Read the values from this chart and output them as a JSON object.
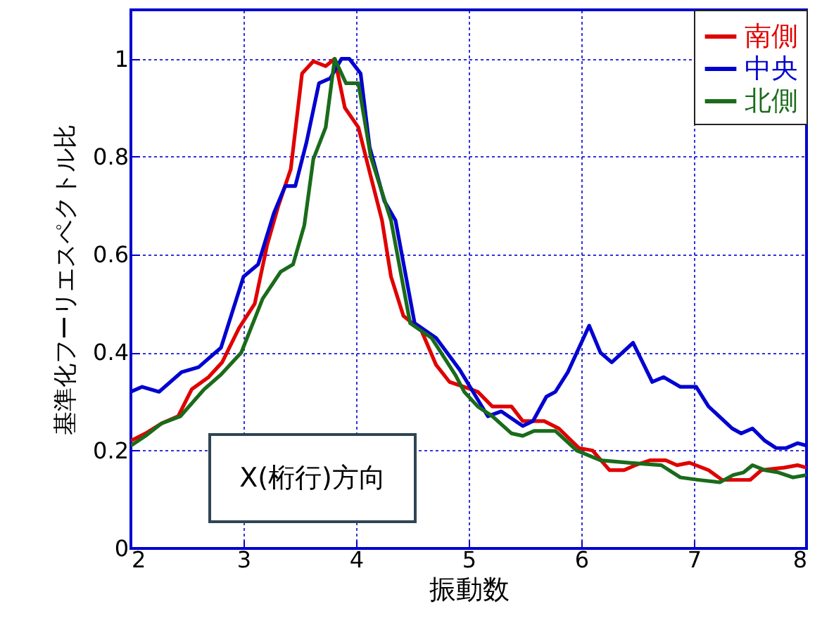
{
  "chart_data": {
    "type": "line",
    "xlabel": "振動数",
    "ylabel": "基準化フーリエスペクトル比",
    "xlim": [
      2,
      8
    ],
    "xticks": [
      2,
      3,
      4,
      5,
      6,
      7,
      8
    ],
    "ylim": [
      0,
      1.1
    ],
    "yticks": [
      0,
      0.2,
      0.4,
      0.6,
      0.8,
      1
    ],
    "grid": true,
    "legend": "top right",
    "line_style": "solid",
    "marker": "none",
    "annotations": [
      "X(桁行)方向"
    ],
    "series": [
      {
        "name": "南側",
        "color": "#e00000",
        "x": [
          2.0,
          2.13,
          2.27,
          2.42,
          2.54,
          2.69,
          2.81,
          2.96,
          3.1,
          3.21,
          3.31,
          3.42,
          3.52,
          3.62,
          3.73,
          3.81,
          3.9,
          4.02,
          4.13,
          4.23,
          4.31,
          4.42,
          4.58,
          4.71,
          4.83,
          4.96,
          5.08,
          5.21,
          5.38,
          5.48,
          5.67,
          5.8,
          5.98,
          6.1,
          6.25,
          6.38,
          6.48,
          6.61,
          6.75,
          6.85,
          6.96,
          7.13,
          7.25,
          7.5,
          7.6,
          7.8,
          7.92,
          8.0
        ],
        "values": [
          0.22,
          0.235,
          0.255,
          0.27,
          0.325,
          0.35,
          0.38,
          0.45,
          0.5,
          0.62,
          0.7,
          0.775,
          0.97,
          0.995,
          0.985,
          1.0,
          0.9,
          0.86,
          0.76,
          0.67,
          0.555,
          0.475,
          0.445,
          0.375,
          0.34,
          0.33,
          0.32,
          0.29,
          0.29,
          0.26,
          0.26,
          0.245,
          0.205,
          0.2,
          0.16,
          0.16,
          0.17,
          0.18,
          0.18,
          0.17,
          0.175,
          0.16,
          0.14,
          0.14,
          0.16,
          0.165,
          0.17,
          0.165
        ]
      },
      {
        "name": "中央",
        "color": "#0000d0",
        "x": [
          2.0,
          2.1,
          2.25,
          2.35,
          2.45,
          2.6,
          2.8,
          3.0,
          3.13,
          3.27,
          3.37,
          3.46,
          3.56,
          3.67,
          3.77,
          3.87,
          3.94,
          4.04,
          4.12,
          4.25,
          4.35,
          4.52,
          4.71,
          4.92,
          5.17,
          5.29,
          5.48,
          5.57,
          5.69,
          5.77,
          5.88,
          6.07,
          6.17,
          6.27,
          6.46,
          6.63,
          6.73,
          6.88,
          7.02,
          7.13,
          7.34,
          7.42,
          7.52,
          7.63,
          7.73,
          7.82,
          7.92,
          8.0
        ],
        "values": [
          0.32,
          0.33,
          0.32,
          0.34,
          0.36,
          0.37,
          0.41,
          0.555,
          0.58,
          0.685,
          0.74,
          0.74,
          0.83,
          0.95,
          0.96,
          1.0,
          1.0,
          0.97,
          0.82,
          0.71,
          0.67,
          0.46,
          0.43,
          0.365,
          0.27,
          0.28,
          0.25,
          0.26,
          0.31,
          0.32,
          0.36,
          0.455,
          0.4,
          0.38,
          0.42,
          0.34,
          0.35,
          0.33,
          0.33,
          0.29,
          0.245,
          0.235,
          0.245,
          0.22,
          0.205,
          0.205,
          0.215,
          0.21
        ]
      },
      {
        "name": "北側",
        "color": "#1a6b1a",
        "x": [
          2.0,
          2.13,
          2.27,
          2.44,
          2.65,
          2.8,
          2.98,
          3.17,
          3.33,
          3.44,
          3.54,
          3.62,
          3.73,
          3.81,
          3.91,
          4.02,
          4.13,
          4.31,
          4.48,
          4.67,
          4.88,
          4.96,
          5.08,
          5.21,
          5.38,
          5.48,
          5.58,
          5.77,
          5.96,
          6.17,
          6.42,
          6.71,
          6.88,
          7.04,
          7.23,
          7.35,
          7.44,
          7.52,
          7.63,
          7.75,
          7.88,
          8.0
        ],
        "values": [
          0.21,
          0.23,
          0.255,
          0.27,
          0.325,
          0.355,
          0.4,
          0.51,
          0.565,
          0.58,
          0.66,
          0.795,
          0.86,
          1.0,
          0.95,
          0.95,
          0.8,
          0.67,
          0.46,
          0.43,
          0.355,
          0.32,
          0.29,
          0.27,
          0.235,
          0.23,
          0.24,
          0.24,
          0.2,
          0.18,
          0.175,
          0.17,
          0.145,
          0.14,
          0.135,
          0.15,
          0.155,
          0.17,
          0.16,
          0.155,
          0.145,
          0.15
        ]
      }
    ]
  }
}
